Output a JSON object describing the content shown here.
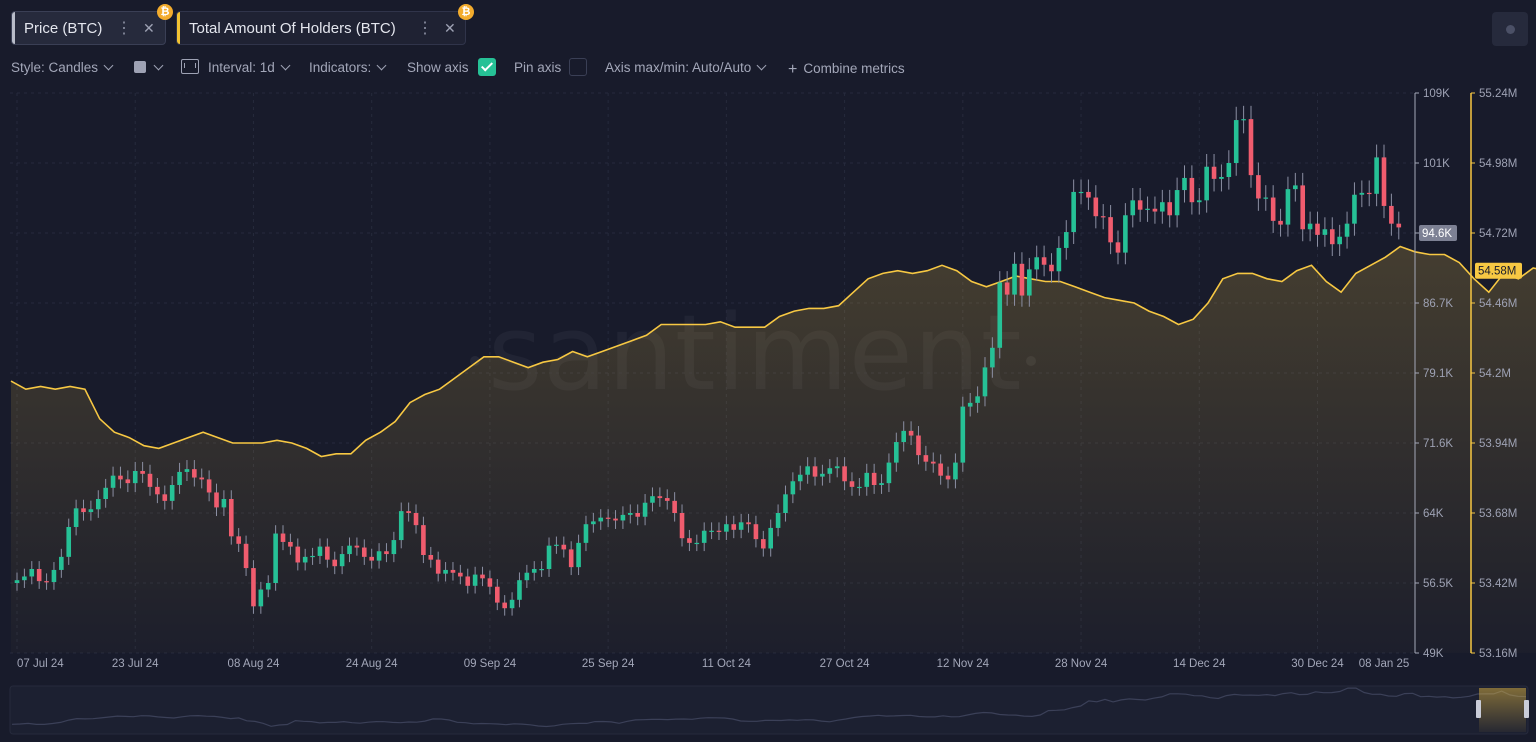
{
  "tabs": [
    {
      "label": "Price (BTC)",
      "badge": "₿",
      "accent": "#b8bcc9"
    },
    {
      "label": "Total Amount Of Holders (BTC)",
      "badge": "₿",
      "accent": "#f1c232"
    }
  ],
  "toolbar": {
    "style_label": "Style: Candles",
    "interval_label": "Interval: 1d",
    "indicators_label": "Indicators:",
    "show_axis_label": "Show axis",
    "show_axis_checked": true,
    "pin_axis_label": "Pin axis",
    "pin_axis_checked": false,
    "axis_label": "Axis max/min: Auto/Auto",
    "combine_label": "Combine metrics"
  },
  "watermark": "santiment",
  "colors": {
    "up": "#26c196",
    "down": "#f05c6e",
    "holders": "#f7c843",
    "background": "#181b2b"
  },
  "chart_data": {
    "type": "candlestick+area",
    "x_tick_labels": [
      "07 Jul 24",
      "23 Jul 24",
      "08 Aug 24",
      "24 Aug 24",
      "09 Sep 24",
      "25 Sep 24",
      "11 Oct 24",
      "27 Oct 24",
      "12 Nov 24",
      "28 Nov 24",
      "14 Dec 24",
      "30 Dec 24",
      "08 Jan 25"
    ],
    "x_range": [
      "2024-07-07",
      "2025-01-08"
    ],
    "price_axis": {
      "ticks": [
        "109K",
        "101K",
        "94.6K",
        "86.7K",
        "79.1K",
        "71.6K",
        "64K",
        "56.5K",
        "49K"
      ],
      "ylim": [
        49000,
        109000
      ],
      "current_label": "94.6K"
    },
    "holders_axis": {
      "ticks": [
        "55.24M",
        "54.98M",
        "54.72M",
        "54.46M",
        "54.2M",
        "53.94M",
        "53.68M",
        "53.42M",
        "53.16M"
      ],
      "ylim": [
        53.16,
        55.24
      ],
      "unit": "M",
      "current_label": "54.58M"
    },
    "series": [
      {
        "name": "Price (BTC)",
        "type": "candlestick",
        "step_days": 1,
        "close": [
          56800,
          57200,
          58000,
          56700,
          56600,
          57900,
          59300,
          62500,
          64500,
          64100,
          64400,
          65500,
          66700,
          68000,
          67600,
          67200,
          68500,
          68200,
          66800,
          66000,
          65300,
          67000,
          68400,
          68700,
          67800,
          67600,
          66200,
          64600,
          65500,
          61500,
          60700,
          58100,
          54000,
          55800,
          56500,
          61800,
          60900,
          60400,
          58700,
          59300,
          59400,
          60400,
          59000,
          58300,
          59600,
          60500,
          60300,
          59300,
          58900,
          59900,
          59600,
          61100,
          64200,
          64000,
          62700,
          59500,
          59000,
          57500,
          57900,
          57600,
          57200,
          56200,
          57400,
          57000,
          56100,
          54400,
          53800,
          54700,
          56800,
          57600,
          58000,
          58000,
          60500,
          60600,
          60100,
          58200,
          60800,
          62800,
          63100,
          63500,
          63400,
          63200,
          63800,
          64000,
          63600,
          65100,
          65800,
          65600,
          65300,
          64000,
          61300,
          60800,
          60800,
          62100,
          62100,
          62000,
          62800,
          62200,
          63000,
          62800,
          61200,
          60200,
          62400,
          64000,
          66000,
          67400,
          68100,
          69000,
          67900,
          68200,
          68800,
          69000,
          67400,
          66800,
          66800,
          68300,
          67000,
          67200,
          69400,
          71600,
          72800,
          72300,
          70200,
          69500,
          69300,
          68000,
          67600,
          69400,
          75400,
          75800,
          76500,
          79600,
          81700,
          88700,
          87400,
          90700,
          87300,
          90100,
          91400,
          90600,
          89900,
          92400,
          94100,
          98400,
          98400,
          97800,
          95800,
          95700,
          93000,
          91900,
          95900,
          97500,
          96500,
          96600,
          96300,
          97300,
          95900,
          98600,
          99900,
          97300,
          97500,
          101100,
          99800,
          100000,
          101500,
          106100,
          106200,
          100200,
          97700,
          97800,
          95300,
          94900,
          98700,
          99100,
          94400,
          95000,
          93800,
          94400,
          92800,
          93600,
          95000,
          98100,
          98300,
          98200,
          102100,
          96900,
          95000,
          94600
        ]
      },
      {
        "name": "Total Amount Of Holders (BTC)",
        "type": "area",
        "step_days": 2,
        "unit": "M",
        "values": [
          54.17,
          54.14,
          54.15,
          54.14,
          54.15,
          54.14,
          54.03,
          53.98,
          53.96,
          53.93,
          53.92,
          53.94,
          53.96,
          53.98,
          53.96,
          53.94,
          53.94,
          53.94,
          53.95,
          53.94,
          53.92,
          53.89,
          53.9,
          53.9,
          53.95,
          53.98,
          54.02,
          54.09,
          54.12,
          54.14,
          54.18,
          54.22,
          54.26,
          54.26,
          54.24,
          54.22,
          54.24,
          54.25,
          54.28,
          54.26,
          54.28,
          54.3,
          54.32,
          54.34,
          54.38,
          54.38,
          54.38,
          54.38,
          54.39,
          54.37,
          54.37,
          54.37,
          54.41,
          54.43,
          54.44,
          54.44,
          54.45,
          54.5,
          54.55,
          54.57,
          54.58,
          54.57,
          54.58,
          54.6,
          54.58,
          54.54,
          54.52,
          54.54,
          54.56,
          54.55,
          54.54,
          54.54,
          54.52,
          54.5,
          54.48,
          54.47,
          54.46,
          54.43,
          54.41,
          54.38,
          54.4,
          54.46,
          54.55,
          54.57,
          54.57,
          54.55,
          54.54,
          54.58,
          54.6,
          54.54,
          54.5,
          54.57,
          54.6,
          54.63,
          54.67,
          54.65,
          54.64,
          54.64,
          54.61,
          54.55,
          54.5,
          54.57,
          54.55,
          54.59,
          54.58,
          54.59,
          54.62,
          54.58,
          54.58,
          54.53,
          54.46,
          54.56,
          54.56,
          54.57,
          54.63,
          54.58,
          54.62,
          54.66,
          54.63,
          54.6,
          54.62,
          54.59,
          54.58,
          54.56,
          54.5,
          54.49,
          54.48,
          54.51,
          54.54,
          54.55,
          54.57,
          54.58
        ]
      }
    ]
  }
}
